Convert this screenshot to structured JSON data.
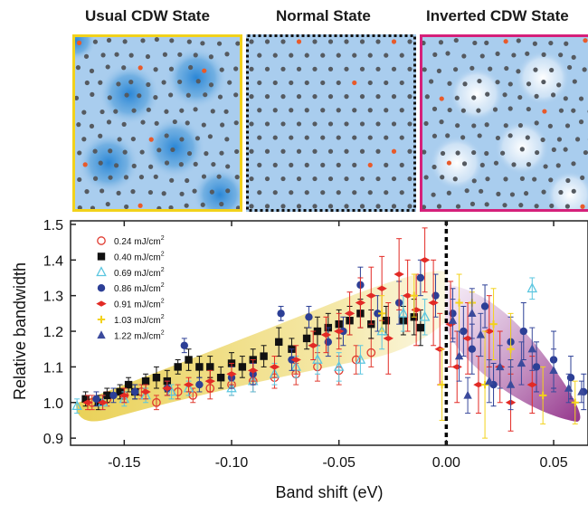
{
  "panels": [
    {
      "title": "Usual CDW State",
      "border_color": "#f2d21b",
      "border_style": "solid"
    },
    {
      "title": "Normal State",
      "border_color": "#111111",
      "border_style": "dotted"
    },
    {
      "title": "Inverted CDW State",
      "border_color": "#d5207a",
      "border_style": "solid"
    }
  ],
  "chart_data": {
    "type": "scatter",
    "xlabel": "Band shift (eV)",
    "ylabel": "Relative bandwidth",
    "xlim": [
      -0.175,
      0.066
    ],
    "ylim": [
      0.88,
      1.51
    ],
    "xticks": [
      -0.15,
      -0.1,
      -0.05,
      0.0,
      0.05
    ],
    "xtick_labels": [
      "-0.15",
      "-0.10",
      "-0.05",
      "0.00",
      "0.05"
    ],
    "yticks": [
      0.9,
      1.0,
      1.1,
      1.2,
      1.3,
      1.4,
      1.5
    ],
    "ytick_labels": [
      "0.9",
      "1.0",
      "1.1",
      "1.2",
      "1.3",
      "1.4",
      "1.5"
    ],
    "reference_line_x": 0.0,
    "legend_position": "top-left",
    "series": [
      {
        "name": "0.24 mJ/cm",
        "color": "#e03a2f",
        "marker": "circle-open",
        "points": [
          [
            -0.165,
            1.0
          ],
          [
            -0.158,
            1.01
          ],
          [
            -0.15,
            1.02
          ],
          [
            -0.142,
            1.03
          ],
          [
            -0.135,
            1.0
          ],
          [
            -0.125,
            1.03
          ],
          [
            -0.118,
            1.02
          ],
          [
            -0.11,
            1.04
          ],
          [
            -0.1,
            1.05
          ],
          [
            -0.09,
            1.06
          ],
          [
            -0.08,
            1.07
          ],
          [
            -0.07,
            1.08
          ],
          [
            -0.06,
            1.1
          ],
          [
            -0.05,
            1.09
          ],
          [
            -0.042,
            1.12
          ],
          [
            -0.035,
            1.14
          ]
        ],
        "errors": [
          0.02,
          0.02,
          0.02,
          0.02,
          0.02,
          0.02,
          0.02,
          0.03,
          0.03,
          0.03,
          0.03,
          0.03,
          0.04,
          0.04,
          0.04,
          0.04
        ]
      },
      {
        "name": "0.40 mJ/cm",
        "color": "#111111",
        "marker": "square",
        "points": [
          [
            -0.168,
            1.01
          ],
          [
            -0.162,
            1.0
          ],
          [
            -0.158,
            1.02
          ],
          [
            -0.152,
            1.03
          ],
          [
            -0.148,
            1.05
          ],
          [
            -0.145,
            1.03
          ],
          [
            -0.14,
            1.06
          ],
          [
            -0.135,
            1.07
          ],
          [
            -0.13,
            1.06
          ],
          [
            -0.125,
            1.1
          ],
          [
            -0.12,
            1.12
          ],
          [
            -0.115,
            1.1
          ],
          [
            -0.11,
            1.1
          ],
          [
            -0.105,
            1.07
          ],
          [
            -0.1,
            1.11
          ],
          [
            -0.095,
            1.1
          ],
          [
            -0.09,
            1.12
          ],
          [
            -0.085,
            1.13
          ],
          [
            -0.078,
            1.17
          ],
          [
            -0.072,
            1.15
          ],
          [
            -0.065,
            1.18
          ],
          [
            -0.06,
            1.2
          ],
          [
            -0.055,
            1.21
          ],
          [
            -0.05,
            1.22
          ],
          [
            -0.045,
            1.23
          ],
          [
            -0.04,
            1.25
          ],
          [
            -0.035,
            1.22
          ],
          [
            -0.028,
            1.23
          ],
          [
            -0.02,
            1.23
          ],
          [
            -0.015,
            1.24
          ],
          [
            -0.012,
            1.21
          ]
        ],
        "errors": [
          0.02,
          0.02,
          0.02,
          0.02,
          0.02,
          0.02,
          0.02,
          0.03,
          0.03,
          0.02,
          0.03,
          0.03,
          0.03,
          0.03,
          0.03,
          0.03,
          0.03,
          0.03,
          0.04,
          0.03,
          0.03,
          0.04,
          0.04,
          0.04,
          0.04,
          0.04,
          0.04,
          0.04,
          0.04,
          0.05,
          0.05
        ]
      },
      {
        "name": "0.69 mJ/cm",
        "color": "#5bc6e0",
        "marker": "triangle-open",
        "points": [
          [
            -0.172,
            0.99
          ],
          [
            -0.16,
            1.0
          ],
          [
            -0.15,
            1.01
          ],
          [
            -0.14,
            1.02
          ],
          [
            -0.128,
            1.03
          ],
          [
            -0.12,
            1.04
          ],
          [
            -0.1,
            1.04
          ],
          [
            -0.09,
            1.06
          ],
          [
            -0.08,
            1.08
          ],
          [
            -0.07,
            1.1
          ],
          [
            -0.06,
            1.12
          ],
          [
            -0.05,
            1.1
          ],
          [
            -0.04,
            1.12
          ],
          [
            -0.03,
            1.2
          ],
          [
            -0.02,
            1.25
          ],
          [
            -0.01,
            1.24
          ],
          [
            0.04,
            1.32
          ]
        ],
        "errors": [
          0.02,
          0.02,
          0.02,
          0.02,
          0.02,
          0.02,
          0.02,
          0.03,
          0.03,
          0.03,
          0.04,
          0.04,
          0.04,
          0.05,
          0.05,
          0.05,
          0.03
        ]
      },
      {
        "name": "0.86 mJ/cm",
        "color": "#2c3f96",
        "marker": "circle",
        "points": [
          [
            -0.163,
            1.01
          ],
          [
            -0.155,
            1.02
          ],
          [
            -0.145,
            1.03
          ],
          [
            -0.13,
            1.04
          ],
          [
            -0.122,
            1.16
          ],
          [
            -0.115,
            1.05
          ],
          [
            -0.1,
            1.07
          ],
          [
            -0.09,
            1.08
          ],
          [
            -0.077,
            1.25
          ],
          [
            -0.072,
            1.12
          ],
          [
            -0.064,
            1.24
          ],
          [
            -0.055,
            1.17
          ],
          [
            -0.048,
            1.2
          ],
          [
            -0.04,
            1.33
          ],
          [
            -0.032,
            1.25
          ],
          [
            -0.022,
            1.28
          ],
          [
            -0.012,
            1.35
          ],
          [
            -0.005,
            1.3
          ],
          [
            0.003,
            1.25
          ],
          [
            0.008,
            1.2
          ],
          [
            0.012,
            1.15
          ],
          [
            0.018,
            1.27
          ],
          [
            0.022,
            1.05
          ],
          [
            0.03,
            1.17
          ],
          [
            0.036,
            1.2
          ],
          [
            0.042,
            1.1
          ],
          [
            0.05,
            1.12
          ],
          [
            0.058,
            1.07
          ],
          [
            0.064,
            1.03
          ]
        ],
        "errors": [
          0.02,
          0.02,
          0.02,
          0.02,
          0.02,
          0.02,
          0.03,
          0.03,
          0.02,
          0.03,
          0.03,
          0.04,
          0.04,
          0.05,
          0.05,
          0.06,
          0.05,
          0.06,
          0.07,
          0.07,
          0.07,
          0.06,
          0.06,
          0.07,
          0.08,
          0.07,
          0.08,
          0.06,
          0.05
        ]
      },
      {
        "name": "0.91 mJ/cm",
        "color": "#e22a25",
        "marker": "diamond",
        "points": [
          [
            -0.167,
            1.0
          ],
          [
            -0.16,
            1.0
          ],
          [
            -0.15,
            1.02
          ],
          [
            -0.14,
            1.03
          ],
          [
            -0.13,
            1.04
          ],
          [
            -0.12,
            1.05
          ],
          [
            -0.11,
            1.06
          ],
          [
            -0.1,
            1.08
          ],
          [
            -0.09,
            1.09
          ],
          [
            -0.08,
            1.1
          ],
          [
            -0.07,
            1.12
          ],
          [
            -0.062,
            1.16
          ],
          [
            -0.056,
            1.19
          ],
          [
            -0.05,
            1.2
          ],
          [
            -0.045,
            1.25
          ],
          [
            -0.04,
            1.28
          ],
          [
            -0.035,
            1.3
          ],
          [
            -0.03,
            1.32
          ],
          [
            -0.027,
            1.18
          ],
          [
            -0.022,
            1.36
          ],
          [
            -0.018,
            1.3
          ],
          [
            -0.014,
            1.26
          ],
          [
            -0.01,
            1.4
          ],
          [
            -0.006,
            1.28
          ],
          [
            -0.003,
            1.15
          ],
          [
            0.002,
            1.22
          ],
          [
            0.005,
            1.1
          ],
          [
            0.01,
            1.18
          ],
          [
            0.015,
            1.05
          ],
          [
            0.02,
            1.2
          ],
          [
            0.025,
            1.1
          ],
          [
            0.03,
            1.0
          ],
          [
            0.04,
            1.05
          ]
        ],
        "errors": [
          0.02,
          0.02,
          0.02,
          0.02,
          0.02,
          0.02,
          0.03,
          0.03,
          0.03,
          0.03,
          0.04,
          0.04,
          0.05,
          0.05,
          0.06,
          0.07,
          0.08,
          0.09,
          0.1,
          0.1,
          0.1,
          0.1,
          0.09,
          0.12,
          0.1,
          0.12,
          0.1,
          0.1,
          0.08,
          0.1,
          0.1,
          0.08,
          0.08
        ]
      },
      {
        "name": "1.03 mJ/cm",
        "color": "#f3d21b",
        "marker": "cross",
        "points": [
          [
            -0.03,
            1.25
          ],
          [
            -0.015,
            1.3
          ],
          [
            -0.002,
            1.05
          ],
          [
            0.006,
            1.28
          ],
          [
            0.012,
            1.28
          ],
          [
            0.018,
            1.05
          ],
          [
            0.022,
            1.22
          ],
          [
            0.03,
            1.15
          ],
          [
            0.045,
            1.02
          ],
          [
            0.06,
            1.0
          ]
        ],
        "errors": [
          0.05,
          0.06,
          0.1,
          0.08,
          0.03,
          0.15,
          0.1,
          0.1,
          0.08,
          0.06
        ]
      },
      {
        "name": "1.22 mJ/cm",
        "color": "#3b4a9c",
        "marker": "triangle",
        "points": [
          [
            0.003,
            1.23
          ],
          [
            0.006,
            1.13
          ],
          [
            0.01,
            1.02
          ],
          [
            0.012,
            1.25
          ],
          [
            0.016,
            1.19
          ],
          [
            0.02,
            1.06
          ],
          [
            0.025,
            1.1
          ],
          [
            0.03,
            1.05
          ],
          [
            0.035,
            1.11
          ],
          [
            0.04,
            1.15
          ],
          [
            0.05,
            1.09
          ],
          [
            0.057,
            1.04
          ],
          [
            0.063,
            1.03
          ]
        ],
        "errors": [
          0.06,
          0.07,
          0.05,
          0.07,
          0.06,
          0.06,
          0.06,
          0.07,
          0.06,
          0.06,
          0.06,
          0.04,
          0.03
        ]
      }
    ]
  },
  "legend_unit_sup": "2"
}
